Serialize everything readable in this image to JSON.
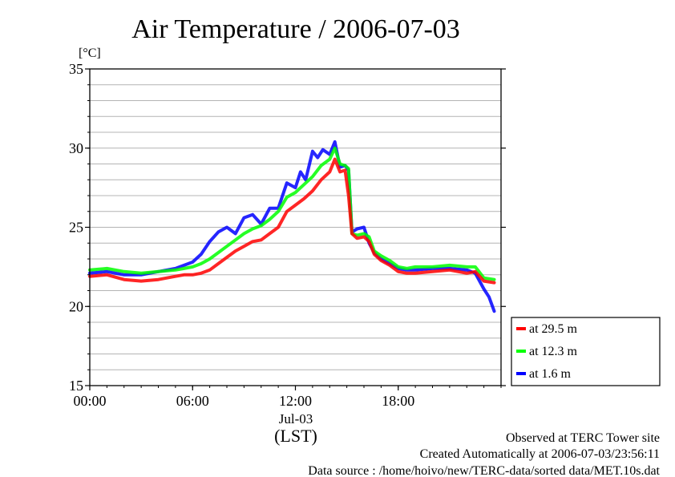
{
  "chart_data": {
    "type": "line",
    "title": "Air Temperature / 2006-07-03",
    "ylabel": "[°C]",
    "xlabel": "(LST)",
    "x_date_label": "Jul-03",
    "xlim_hours": [
      0,
      24
    ],
    "ylim": [
      15,
      35
    ],
    "y_ticks": [
      "15",
      "20",
      "25",
      "30",
      "35"
    ],
    "x_ticks": [
      {
        "hour": 0,
        "label": "00:00"
      },
      {
        "hour": 6,
        "label": "06:00"
      },
      {
        "hour": 12,
        "label": "12:00"
      },
      {
        "hour": 18,
        "label": "18:00"
      }
    ],
    "minor_grid_step": 1,
    "grid": true,
    "legend_position": "right-bottom outside",
    "series": [
      {
        "name": "at 29.5 m",
        "color": "#ff0000",
        "x": [
          0,
          1,
          2,
          3,
          4,
          5,
          5.5,
          6,
          6.5,
          7,
          7.5,
          8,
          8.5,
          9,
          9.5,
          10,
          10.5,
          11,
          11.5,
          12,
          12.5,
          13,
          13.5,
          14,
          14.3,
          14.6,
          14.9,
          15.1,
          15.3,
          15.6,
          16,
          16.3,
          16.6,
          17,
          17.5,
          18,
          18.5,
          19,
          20,
          21,
          22,
          22.5,
          23,
          23.6
        ],
        "y": [
          21.9,
          22.0,
          21.7,
          21.6,
          21.7,
          21.9,
          22.0,
          22.0,
          22.1,
          22.3,
          22.7,
          23.1,
          23.5,
          23.8,
          24.1,
          24.2,
          24.6,
          25.0,
          26.0,
          26.4,
          26.8,
          27.3,
          28.0,
          28.5,
          29.3,
          28.5,
          28.6,
          27.0,
          24.6,
          24.3,
          24.4,
          24.1,
          23.3,
          22.9,
          22.6,
          22.2,
          22.1,
          22.1,
          22.2,
          22.3,
          22.1,
          22.2,
          21.6,
          21.5
        ]
      },
      {
        "name": "at 12.3 m",
        "color": "#00ff00",
        "x": [
          0,
          1,
          2,
          3,
          4,
          5,
          5.5,
          6,
          6.5,
          7,
          7.5,
          8,
          8.5,
          9,
          9.5,
          10,
          10.5,
          11,
          11.5,
          12,
          12.5,
          13,
          13.5,
          14,
          14.3,
          14.6,
          14.9,
          15.1,
          15.3,
          15.6,
          16,
          16.3,
          16.6,
          17,
          17.5,
          18,
          18.5,
          19,
          20,
          21,
          22,
          22.5,
          23,
          23.6
        ],
        "y": [
          22.3,
          22.4,
          22.2,
          22.1,
          22.2,
          22.3,
          22.4,
          22.5,
          22.7,
          23.0,
          23.4,
          23.8,
          24.2,
          24.6,
          24.9,
          25.1,
          25.5,
          26.0,
          26.9,
          27.2,
          27.7,
          28.2,
          28.9,
          29.3,
          30.0,
          29.0,
          28.9,
          28.7,
          24.6,
          24.5,
          24.6,
          24.4,
          23.5,
          23.2,
          22.9,
          22.5,
          22.4,
          22.5,
          22.5,
          22.6,
          22.5,
          22.5,
          21.8,
          21.7
        ]
      },
      {
        "name": "at 1.6 m",
        "color": "#0000ff",
        "x": [
          0,
          1,
          2,
          3,
          4,
          5,
          5.5,
          6,
          6.5,
          7,
          7.5,
          8,
          8.5,
          9,
          9.5,
          10,
          10.5,
          11,
          11.5,
          12,
          12.3,
          12.6,
          13,
          13.3,
          13.6,
          14,
          14.3,
          14.6,
          14.9,
          15.1,
          15.3,
          15.6,
          16,
          16.3,
          16.6,
          17,
          17.5,
          18,
          18.5,
          19,
          20,
          21,
          22,
          22.5,
          23,
          23.3,
          23.6
        ],
        "y": [
          22.1,
          22.2,
          22.0,
          22.0,
          22.2,
          22.4,
          22.6,
          22.8,
          23.3,
          24.1,
          24.7,
          25.0,
          24.6,
          25.6,
          25.8,
          25.2,
          26.2,
          26.2,
          27.8,
          27.5,
          28.5,
          28.0,
          29.8,
          29.4,
          29.9,
          29.6,
          30.4,
          28.8,
          28.9,
          28.6,
          24.7,
          24.9,
          25.0,
          24.0,
          23.4,
          23.0,
          22.7,
          22.4,
          22.3,
          22.3,
          22.4,
          22.4,
          22.3,
          22.1,
          21.1,
          20.6,
          19.7
        ]
      }
    ]
  },
  "footer": {
    "line1": "Observed at TERC Tower site",
    "line2": "Created Automatically at 2006-07-03/23:56:11",
    "line3": "Data source : /home/hoivo/new/TERC-data/sorted  data/MET.10s.dat"
  }
}
